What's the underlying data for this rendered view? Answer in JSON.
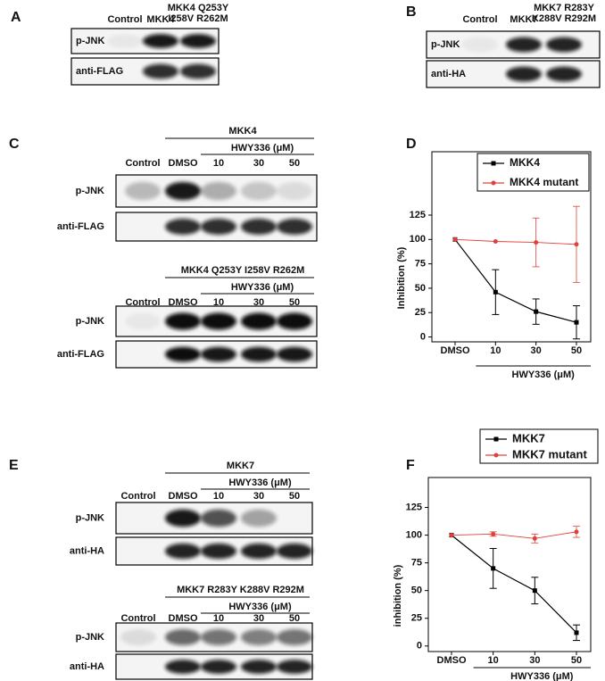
{
  "panel_labels": [
    "A",
    "B",
    "C",
    "D",
    "E",
    "F"
  ],
  "blots": [
    {
      "lanes": [
        "Control",
        "MKK4",
        [
          "MKK4 Q253Y",
          "I258V R262M"
        ]
      ],
      "rows": [
        "p-JNK",
        "anti-FLAG"
      ]
    },
    {
      "lanes": [
        "Control",
        "MKK7",
        [
          "MKK7 R283Y",
          "K288V R292M"
        ]
      ],
      "rows": [
        "p-JNK",
        "anti-HA"
      ]
    },
    {
      "header": "MKK4",
      "treatment": "HWY336 (μM)",
      "lanes": [
        "Control",
        "DMSO",
        "10",
        "30",
        "50"
      ],
      "rows": [
        "p-JNK",
        "anti-FLAG"
      ]
    },
    {
      "header": "MKK4 Q253Y I258V R262M",
      "treatment": "HWY336 (μM)",
      "lanes": [
        "Control",
        "DMSO",
        "10",
        "30",
        "50"
      ],
      "rows": [
        "p-JNK",
        "anti-FLAG"
      ]
    },
    {
      "header": "MKK7",
      "treatment": "HWY336 (μM)",
      "lanes": [
        "Control",
        "DMSO",
        "10",
        "30",
        "50"
      ],
      "rows": [
        "p-JNK",
        "anti-HA"
      ]
    },
    {
      "header": "MKK7 R283Y K288V R292M",
      "treatment": "HWY336 (μM)",
      "lanes": [
        "Control",
        "DMSO",
        "10",
        "30",
        "50"
      ],
      "rows": [
        "p-JNK",
        "anti-HA"
      ]
    }
  ],
  "chart_data": [
    {
      "type": "line",
      "ylabel": "Inhibition (%)",
      "categories": [
        "DMSO",
        "10",
        "30",
        "50"
      ],
      "x_group_label": "HWY336 (μM)",
      "ylim": [
        -5,
        190
      ],
      "yticks": [
        0,
        25,
        50,
        75,
        100,
        125
      ],
      "series": [
        {
          "name": "MKK4",
          "color": "#000000",
          "values": [
            100,
            46,
            26,
            15
          ],
          "errors": [
            0,
            23,
            13,
            17
          ]
        },
        {
          "name": "MKK4 mutant",
          "color": "#e0403a",
          "values": [
            100,
            98,
            97,
            95
          ],
          "errors": [
            0,
            0,
            25,
            39
          ]
        }
      ]
    },
    {
      "type": "line",
      "ylabel": "inhibition (%)",
      "categories": [
        "DMSO",
        "10",
        "30",
        "50"
      ],
      "x_group_label": "HWY336 (μM)",
      "ylim": [
        -5,
        152
      ],
      "yticks": [
        0,
        25,
        50,
        75,
        100,
        125
      ],
      "series": [
        {
          "name": "MKK7",
          "color": "#000000",
          "values": [
            100,
            70,
            50,
            12
          ],
          "errors": [
            0,
            18,
            12,
            7
          ]
        },
        {
          "name": "MKK7 mutant",
          "color": "#e0403a",
          "values": [
            100,
            101,
            97,
            103
          ],
          "errors": [
            0,
            2,
            4,
            5
          ]
        }
      ]
    }
  ]
}
